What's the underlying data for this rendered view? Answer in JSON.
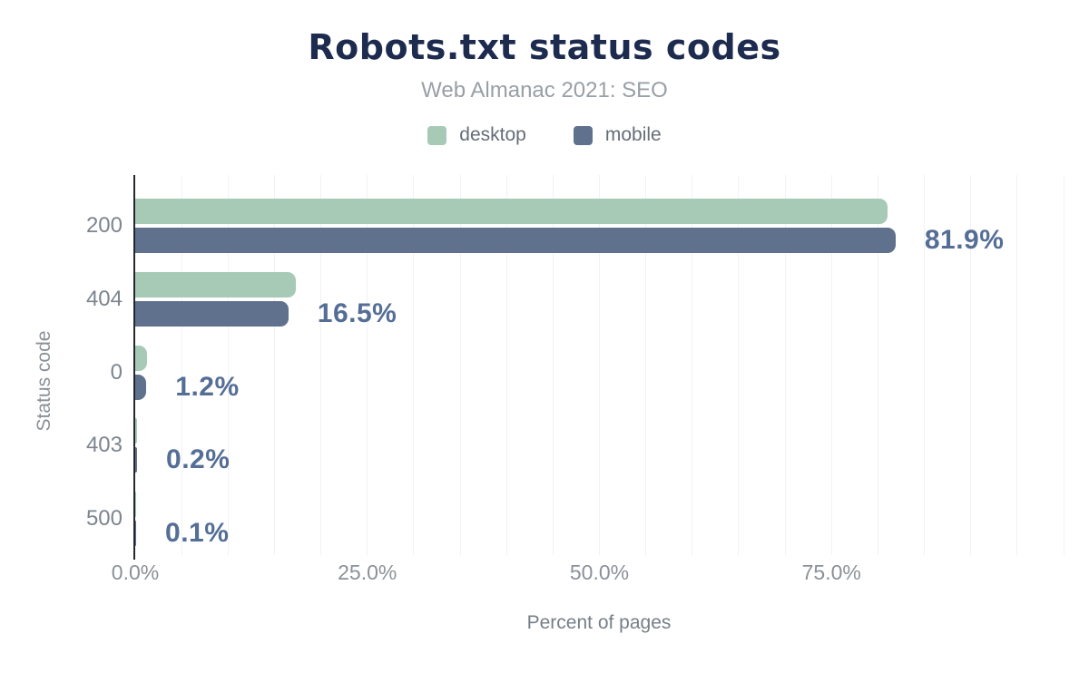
{
  "header": {
    "title": "Robots.txt status codes",
    "subtitle": "Web Almanac 2021: SEO"
  },
  "legend": [
    {
      "label": "desktop",
      "color": "#a7cab7"
    },
    {
      "label": "mobile",
      "color": "#5f718c"
    }
  ],
  "colors": {
    "title": "#1d2b4f",
    "subtitle": "#989fa6",
    "desktop_bar": "#a7cab7",
    "mobile_bar": "#5f718c",
    "value_label": "#556e96",
    "axis_line": "#24272c",
    "gridline": "#f1f2f4",
    "tick_text": "#8b9198"
  },
  "chart_data": {
    "type": "bar",
    "orientation": "horizontal",
    "title": "Robots.txt status codes",
    "subtitle": "Web Almanac 2021: SEO",
    "categories": [
      "200",
      "404",
      "0",
      "403",
      "500"
    ],
    "series": [
      {
        "name": "desktop",
        "color": "#a7cab7",
        "values": [
          81.0,
          17.3,
          1.3,
          0.2,
          0.1
        ]
      },
      {
        "name": "mobile",
        "color": "#5f718c",
        "values": [
          81.9,
          16.5,
          1.2,
          0.2,
          0.1
        ]
      }
    ],
    "value_labels": {
      "series": "mobile",
      "values": [
        "81.9%",
        "16.5%",
        "1.2%",
        "0.2%",
        "0.1%"
      ]
    },
    "xlabel": "Percent of pages",
    "ylabel": "Status code",
    "xlim": [
      0,
      100
    ],
    "x_ticks": [
      {
        "value": 0,
        "label": "0.0%"
      },
      {
        "value": 25,
        "label": "25.0%"
      },
      {
        "value": 50,
        "label": "50.0%"
      },
      {
        "value": 75,
        "label": "75.0%"
      }
    ],
    "gridline_step": 5,
    "grid": true,
    "legend_position": "top"
  }
}
